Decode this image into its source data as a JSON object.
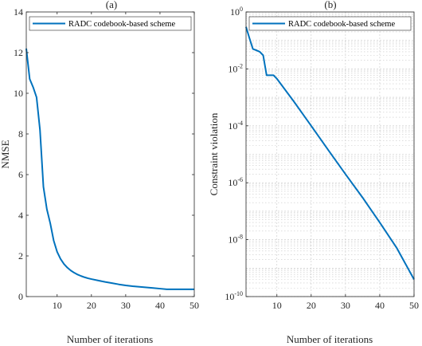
{
  "chart_data": [
    {
      "type": "line",
      "title": "(a)",
      "xlabel": "Number of iterations",
      "ylabel": "NMSE",
      "xlim": [
        1,
        50
      ],
      "ylim": [
        0,
        14
      ],
      "xticks": [
        10,
        20,
        30,
        40,
        50
      ],
      "yticks": [
        0,
        2,
        4,
        6,
        8,
        10,
        12,
        14
      ],
      "grid": false,
      "legend_position": "top",
      "series": [
        {
          "name": "RADC codebook-based scheme",
          "color": "#0072BD",
          "x": [
            1,
            2,
            3,
            4,
            5,
            6,
            7,
            8,
            9,
            10,
            11,
            12,
            13,
            14,
            15,
            16,
            17,
            18,
            19,
            20,
            22,
            24,
            26,
            28,
            30,
            32,
            34,
            36,
            38,
            40,
            42,
            44,
            46,
            48,
            50
          ],
          "values": [
            12.2,
            10.7,
            10.3,
            9.8,
            8.2,
            5.4,
            4.3,
            3.6,
            2.75,
            2.2,
            1.85,
            1.6,
            1.42,
            1.28,
            1.17,
            1.08,
            1.01,
            0.95,
            0.9,
            0.86,
            0.79,
            0.72,
            0.66,
            0.6,
            0.55,
            0.51,
            0.48,
            0.45,
            0.42,
            0.39,
            0.36,
            0.36,
            0.36,
            0.36,
            0.36
          ]
        }
      ]
    },
    {
      "type": "line",
      "title": "(b)",
      "xlabel": "Number of iterations",
      "ylabel": "Constraint violation",
      "xlim": [
        1,
        50
      ],
      "ylim": [
        1e-10,
        1
      ],
      "yscale": "log",
      "xticks": [
        10,
        20,
        30,
        40,
        50
      ],
      "yticks": [
        {
          "base": "10",
          "exp": "-10",
          "value": 1e-10
        },
        {
          "base": "10",
          "exp": "-8",
          "value": 1e-08
        },
        {
          "base": "10",
          "exp": "-6",
          "value": 1e-06
        },
        {
          "base": "10",
          "exp": "-4",
          "value": 0.0001
        },
        {
          "base": "10",
          "exp": "-2",
          "value": 0.01
        },
        {
          "base": "10",
          "exp": "0",
          "value": 1
        }
      ],
      "grid": true,
      "legend_position": "top",
      "series": [
        {
          "name": "RADC codebook-based scheme",
          "color": "#0072BD",
          "x": [
            1,
            2,
            3,
            4,
            5,
            6,
            7,
            8,
            9,
            10,
            15,
            20,
            25,
            30,
            35,
            40,
            45,
            50
          ],
          "values": [
            0.3,
            0.12,
            0.05,
            0.045,
            0.04,
            0.03,
            0.006,
            0.006,
            0.006,
            0.0045,
            0.0007,
            0.0001,
            1.4e-05,
            2e-06,
            3e-07,
            4e-08,
            5e-09,
            4e-10
          ]
        }
      ]
    }
  ]
}
